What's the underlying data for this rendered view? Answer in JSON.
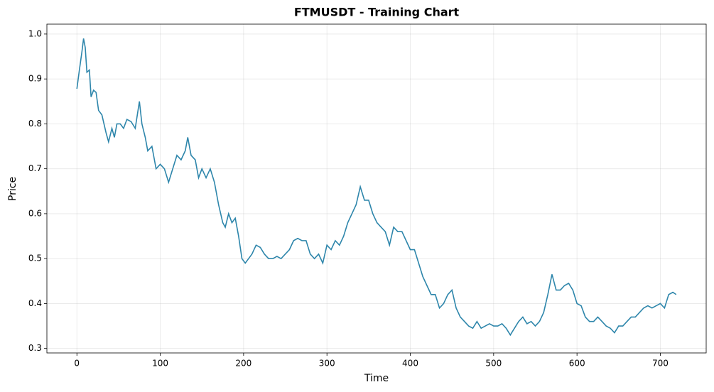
{
  "chart_data": {
    "type": "line",
    "title": "FTMUSDT - Training Chart",
    "x_label": "Time",
    "y_label": "Price",
    "x": [
      0,
      3,
      6,
      8,
      10,
      12,
      15,
      17,
      20,
      23,
      26,
      30,
      35,
      38,
      42,
      45,
      48,
      52,
      56,
      60,
      65,
      70,
      75,
      78,
      82,
      85,
      90,
      95,
      100,
      105,
      110,
      115,
      120,
      125,
      130,
      133,
      137,
      142,
      146,
      150,
      155,
      160,
      165,
      170,
      175,
      178,
      182,
      186,
      190,
      194,
      198,
      202,
      206,
      210,
      215,
      220,
      225,
      230,
      235,
      240,
      245,
      250,
      255,
      260,
      265,
      270,
      275,
      280,
      285,
      290,
      295,
      300,
      305,
      310,
      315,
      320,
      325,
      330,
      335,
      340,
      345,
      350,
      355,
      360,
      365,
      370,
      375,
      380,
      385,
      390,
      395,
      400,
      405,
      410,
      415,
      420,
      425,
      430,
      435,
      440,
      445,
      450,
      455,
      460,
      465,
      470,
      475,
      480,
      485,
      490,
      495,
      500,
      505,
      510,
      515,
      520,
      525,
      530,
      535,
      540,
      545,
      550,
      555,
      560,
      565,
      570,
      575,
      580,
      585,
      590,
      595,
      600,
      605,
      610,
      615,
      620,
      625,
      630,
      635,
      640,
      645,
      650,
      655,
      660,
      665,
      670,
      675,
      680,
      685,
      690,
      695,
      700,
      705,
      710,
      715,
      719
    ],
    "series": [
      {
        "name": "Price",
        "color": "#2e86ab",
        "values": [
          0.878,
          0.92,
          0.96,
          0.99,
          0.97,
          0.915,
          0.92,
          0.86,
          0.875,
          0.87,
          0.83,
          0.82,
          0.78,
          0.76,
          0.79,
          0.77,
          0.8,
          0.8,
          0.79,
          0.81,
          0.805,
          0.79,
          0.85,
          0.8,
          0.77,
          0.74,
          0.75,
          0.7,
          0.71,
          0.7,
          0.67,
          0.7,
          0.73,
          0.72,
          0.74,
          0.77,
          0.73,
          0.72,
          0.68,
          0.7,
          0.68,
          0.7,
          0.67,
          0.62,
          0.58,
          0.57,
          0.6,
          0.58,
          0.59,
          0.55,
          0.5,
          0.49,
          0.5,
          0.51,
          0.53,
          0.525,
          0.51,
          0.5,
          0.5,
          0.505,
          0.5,
          0.51,
          0.52,
          0.54,
          0.545,
          0.54,
          0.54,
          0.51,
          0.5,
          0.51,
          0.49,
          0.53,
          0.52,
          0.54,
          0.53,
          0.55,
          0.58,
          0.6,
          0.62,
          0.66,
          0.63,
          0.63,
          0.6,
          0.58,
          0.57,
          0.56,
          0.53,
          0.57,
          0.56,
          0.56,
          0.54,
          0.52,
          0.52,
          0.49,
          0.46,
          0.44,
          0.42,
          0.42,
          0.39,
          0.4,
          0.42,
          0.43,
          0.39,
          0.37,
          0.36,
          0.35,
          0.345,
          0.36,
          0.345,
          0.35,
          0.355,
          0.35,
          0.35,
          0.355,
          0.345,
          0.33,
          0.345,
          0.36,
          0.37,
          0.355,
          0.36,
          0.35,
          0.36,
          0.38,
          0.42,
          0.465,
          0.43,
          0.43,
          0.44,
          0.445,
          0.43,
          0.4,
          0.395,
          0.37,
          0.36,
          0.36,
          0.37,
          0.36,
          0.35,
          0.345,
          0.335,
          0.35,
          0.35,
          0.36,
          0.37,
          0.37,
          0.38,
          0.39,
          0.395,
          0.39,
          0.395,
          0.4,
          0.39,
          0.42,
          0.425,
          0.42
        ]
      }
    ],
    "xlim": [
      -36,
      755
    ],
    "ylim": [
      0.29,
      1.022
    ],
    "xticks": [
      0,
      100,
      200,
      300,
      400,
      500,
      600,
      700
    ],
    "yticks": [
      0.3,
      0.4,
      0.5,
      0.6,
      0.7,
      0.8,
      0.9,
      {
        "value": 1,
        "label": "1.0"
      }
    ],
    "grid": true
  }
}
